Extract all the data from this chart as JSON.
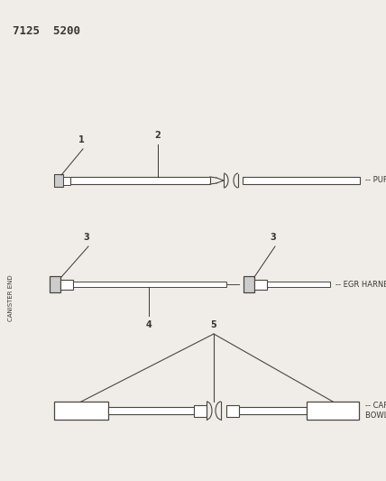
{
  "title": "7125  5200",
  "background_color": "#f0ede8",
  "line_color": "#4a4540",
  "text_color": "#3a3530",
  "side_label": "CANISTER END",
  "purge_label": "-- PURGE",
  "egr_label": "-- EGR HARNESS",
  "carb_label": "-- CARB\nBOWL VENT",
  "fig_w": 4.28,
  "fig_h": 5.33,
  "dpi": 100
}
